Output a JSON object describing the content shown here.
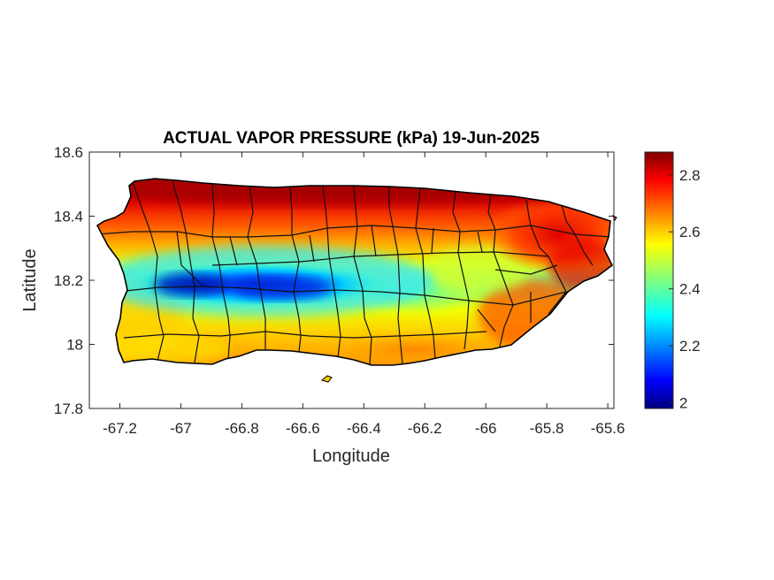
{
  "chart_data": {
    "type": "heatmap",
    "title": "ACTUAL VAPOR PRESSURE (kPa) 19-Jun-2025",
    "xlabel": "Longitude",
    "ylabel": "Latitude",
    "xlim": [
      -67.3,
      -65.58
    ],
    "ylim": [
      17.8,
      18.6
    ],
    "xticks": [
      -67.2,
      -67,
      -66.8,
      -66.6,
      -66.4,
      -66.2,
      -66,
      -65.8,
      -65.6
    ],
    "xtick_labels": [
      "-67.2",
      "-67",
      "-66.8",
      "-66.6",
      "-66.4",
      "-66.2",
      "-66",
      "-65.8",
      "-65.6"
    ],
    "yticks": [
      17.8,
      18,
      18.2,
      18.4,
      18.6
    ],
    "ytick_labels": [
      "17.8",
      "18",
      "18.2",
      "18.4",
      "18.6"
    ],
    "colorbar": {
      "colormap": "jet",
      "range": [
        1.98,
        2.88
      ],
      "ticks": [
        2,
        2.2,
        2.4,
        2.6,
        2.8
      ],
      "tick_labels": [
        "2",
        "2.2",
        "2.4",
        "2.6",
        "2.8"
      ]
    },
    "field_summary": {
      "north_coast": 2.85,
      "central_mountains_west": 2.05,
      "central_mountains_east": 2.45,
      "south_coast": 2.6,
      "east_coast": 2.8
    }
  }
}
